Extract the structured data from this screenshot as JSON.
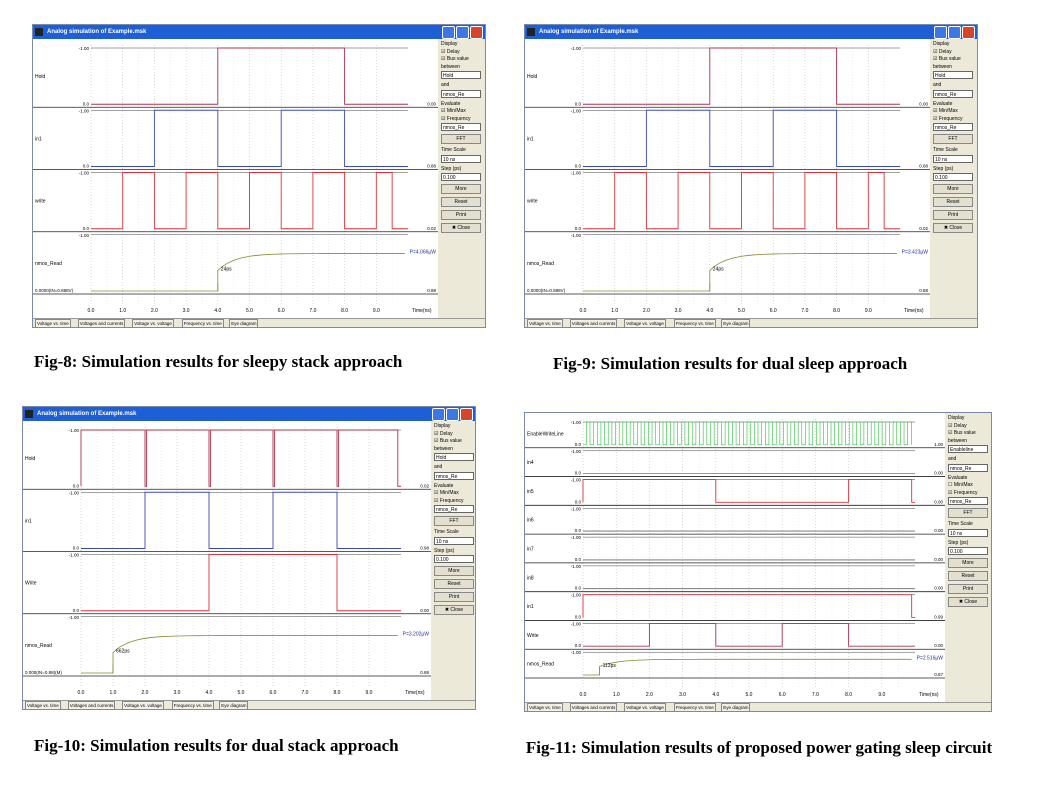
{
  "panels": [
    {
      "window_title": "Analog simulation of Example.msk",
      "signals": [
        "Hold",
        "in1",
        "write",
        "nmos_Read"
      ],
      "top_levels": [
        "1.00",
        "1.00",
        "1.00",
        "1.00"
      ],
      "bottom_levels": [
        "0.0",
        "0.0",
        "0.0"
      ],
      "right_values": [
        "0.00",
        "0.88",
        "0.02",
        "0.88"
      ],
      "annotation": "24ps",
      "power": "P=4.066µW",
      "left_readout": "0.0000(IN=0.888V)",
      "x_ticks": [
        "0.0",
        "1.0",
        "2.0",
        "3.0",
        "4.0",
        "5.0",
        "6.0",
        "7.0",
        "8.0",
        "9.0"
      ],
      "time_label": "Time(ns)",
      "caption": "Fig-8: Simulation results for sleepy stack approach"
    },
    {
      "window_title": "Analog simulation of Example.msk",
      "signals": [
        "Hold",
        "in1",
        "write",
        "nmos_Read"
      ],
      "top_levels": [
        "1.00",
        "1.00",
        "1.00",
        "1.00"
      ],
      "bottom_levels": [
        "0.0",
        "0.0",
        "0.0"
      ],
      "right_values": [
        "0.00",
        "0.88",
        "0.02",
        "0.88"
      ],
      "annotation": "24ps",
      "power": "P=3.423µW",
      "left_readout": "0.0000(IN=0.888V)",
      "x_ticks": [
        "0.0",
        "1.0",
        "2.0",
        "3.0",
        "4.0",
        "5.0",
        "6.0",
        "7.0",
        "8.0",
        "9.0"
      ],
      "time_label": "Time(ns)",
      "caption": "Fig-9: Simulation results for dual sleep approach"
    },
    {
      "window_title": "Analog simulation of Example.msk",
      "signals": [
        "Hold",
        "in1",
        "Write",
        "nmos_Read"
      ],
      "top_levels": [
        "1.00",
        "1.00",
        "1.00",
        "1.00"
      ],
      "bottom_levels": [
        "0.0",
        "0.0",
        "0.0"
      ],
      "right_values": [
        "0.02",
        "0.98",
        "0.00",
        "0.88"
      ],
      "annotation": "662ps",
      "power": "P=3.202µW",
      "left_readout": "0.000(IN=0.88)(M)",
      "x_ticks": [
        "0.0",
        "1.0",
        "2.0",
        "3.0",
        "4.0",
        "5.0",
        "6.0",
        "7.0",
        "8.0",
        "9.0"
      ],
      "time_label": "Time(ns)",
      "caption": "Fig-10: Simulation results for dual stack approach"
    },
    {
      "window_title": "",
      "signals": [
        "EnableWriteLine",
        "in4",
        "in5",
        "in6",
        "in7",
        "in8",
        "in1",
        "Write",
        "nmos_Read"
      ],
      "top_levels": [
        "1.00",
        "1.00",
        "1.00",
        "1.00",
        "1.00",
        "1.00",
        "1.00",
        "1.00",
        "1.00"
      ],
      "bottom_levels": [
        "0.0",
        "0.0",
        "0.0",
        "0.0",
        "0.0",
        "0.0",
        "0.0",
        "0.0"
      ],
      "right_values": [
        "1.00",
        "0.00",
        "0.00",
        "0.00",
        "0.00",
        "0.00",
        "0.99",
        "0.00",
        "0.67"
      ],
      "annotation": "113ps",
      "power": "P=2.516µW",
      "left_readout": "",
      "x_ticks": [
        "0.0",
        "1.0",
        "2.0",
        "3.0",
        "4.0",
        "5.0",
        "6.0",
        "7.0",
        "8.0",
        "9.0"
      ],
      "time_label": "Time(ns)",
      "caption": "Fig-11: Simulation results of proposed power gating sleep circuit"
    }
  ],
  "controls": {
    "display": "Display",
    "delay": "Delay",
    "bus_value": "Bus value",
    "between": "between",
    "hold_option": "Hold",
    "enable_option": "Enableline",
    "and": "and",
    "nmos_option": "nmos_Re",
    "evaluate": "Evaluate",
    "minmax": "Min/Max",
    "frequency": "Frequency",
    "fft": "FFT",
    "time_scale": "Time Scale",
    "time_scale_value": "10 ns",
    "step": "Step (ps)",
    "step_value": "0.100",
    "more": "More",
    "reset": "Reset",
    "print": "Print",
    "close": "Close"
  },
  "tabs": [
    "Voltage vs. time",
    "Voltages and currents",
    "Voltage vs. voltage",
    "Frequency vs. time",
    "Eye diagram"
  ],
  "colors": {
    "hold": "#b0304a",
    "in1": "#3a48c0",
    "write": "#e0303a",
    "read": "#8a8a30",
    "enable": "#30c040"
  }
}
